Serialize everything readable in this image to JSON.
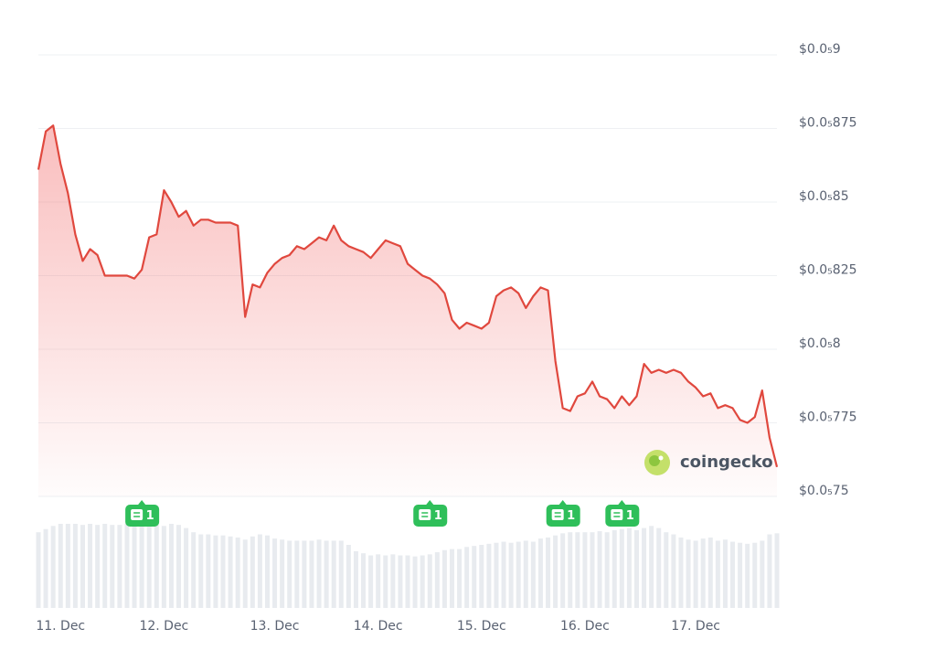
{
  "chart_data": {
    "type": "line",
    "color": "#e0483e",
    "categories": [
      null,
      null,
      null,
      "11. Dec",
      null,
      null,
      null,
      null,
      null,
      null,
      null,
      null,
      null,
      null,
      null,
      null,
      null,
      "12. Dec",
      null,
      null,
      null,
      null,
      null,
      null,
      null,
      null,
      null,
      null,
      null,
      null,
      null,
      null,
      "13. Dec",
      null,
      null,
      null,
      null,
      null,
      null,
      null,
      null,
      null,
      null,
      null,
      null,
      null,
      "14. Dec",
      null,
      null,
      null,
      null,
      null,
      null,
      null,
      null,
      null,
      null,
      null,
      null,
      null,
      "15. Dec",
      null,
      null,
      null,
      null,
      null,
      null,
      null,
      null,
      null,
      null,
      null,
      null,
      null,
      "16. Dec",
      null,
      null,
      null,
      null,
      null,
      null,
      null,
      null,
      null,
      null,
      null,
      null,
      null,
      null,
      "17. Dec",
      null,
      null,
      null,
      null,
      null,
      null,
      null,
      null,
      null,
      null,
      null
    ],
    "values": [
      8.61e-07,
      8.74e-07,
      8.76e-07,
      8.63e-07,
      8.53e-07,
      8.39e-07,
      8.3e-07,
      8.34e-07,
      8.32e-07,
      8.25e-07,
      8.25e-07,
      8.25e-07,
      8.25e-07,
      8.24e-07,
      8.27e-07,
      8.38e-07,
      8.39e-07,
      8.54e-07,
      8.5e-07,
      8.45e-07,
      8.47e-07,
      8.42e-07,
      8.44e-07,
      8.44e-07,
      8.43e-07,
      8.43e-07,
      8.43e-07,
      8.42e-07,
      8.11e-07,
      8.22e-07,
      8.21e-07,
      8.26e-07,
      8.29e-07,
      8.31e-07,
      8.32e-07,
      8.35e-07,
      8.34e-07,
      8.36e-07,
      8.38e-07,
      8.37e-07,
      8.42e-07,
      8.37e-07,
      8.35e-07,
      8.34e-07,
      8.33e-07,
      8.31e-07,
      8.34e-07,
      8.37e-07,
      8.36e-07,
      8.35e-07,
      8.29e-07,
      8.27e-07,
      8.25e-07,
      8.24e-07,
      8.22e-07,
      8.19e-07,
      8.1e-07,
      8.07e-07,
      8.09e-07,
      8.08e-07,
      8.07e-07,
      8.09e-07,
      8.18e-07,
      8.2e-07,
      8.21e-07,
      8.19e-07,
      8.14e-07,
      8.18e-07,
      8.21e-07,
      8.2e-07,
      7.96e-07,
      7.8e-07,
      7.79e-07,
      7.84e-07,
      7.85e-07,
      7.89e-07,
      7.84e-07,
      7.83e-07,
      7.8e-07,
      7.84e-07,
      7.81e-07,
      7.84e-07,
      7.95e-07,
      7.92e-07,
      7.93e-07,
      7.92e-07,
      7.93e-07,
      7.92e-07,
      7.89e-07,
      7.87e-07,
      7.84e-07,
      7.85e-07,
      7.8e-07,
      7.81e-07,
      7.8e-07,
      7.76e-07,
      7.75e-07,
      7.77e-07,
      7.86e-07,
      7.7e-07,
      7.6e-07
    ],
    "volume": [
      72,
      75,
      78,
      80,
      80,
      80,
      79,
      80,
      79,
      80,
      79,
      79,
      80,
      80,
      81,
      80,
      79,
      78,
      80,
      79,
      76,
      72,
      70,
      70,
      69,
      69,
      68,
      67,
      65,
      68,
      70,
      69,
      66,
      65,
      64,
      64,
      64,
      64,
      65,
      64,
      64,
      64,
      60,
      54,
      52,
      50,
      51,
      50,
      51,
      50,
      50,
      49,
      50,
      51,
      53,
      55,
      56,
      56,
      58,
      59,
      60,
      61,
      62,
      63,
      62,
      63,
      64,
      63,
      66,
      67,
      69,
      71,
      72,
      72,
      72,
      72,
      73,
      72,
      74,
      75,
      76,
      74,
      76,
      78,
      76,
      72,
      70,
      67,
      65,
      64,
      66,
      67,
      64,
      65,
      63,
      62,
      61,
      62,
      64,
      70,
      71
    ],
    "volume_color": "#e8ebef",
    "volume_lim": [
      0,
      100
    ],
    "ylim": [
      7.5e-07,
      9e-07
    ],
    "yticks": [
      {
        "value": 9e-07,
        "label": "$0.0₅9"
      },
      {
        "value": 8.75e-07,
        "label": "$0.0₅875"
      },
      {
        "value": 8.5e-07,
        "label": "$0.0₅85"
      },
      {
        "value": 8.25e-07,
        "label": "$0.0₅825"
      },
      {
        "value": 8e-07,
        "label": "$0.0₅8"
      },
      {
        "value": 7.75e-07,
        "label": "$0.0₅775"
      },
      {
        "value": 7.5e-07,
        "label": "$0.0₅75"
      }
    ],
    "grid": true,
    "news": [
      {
        "index": 14,
        "count": 1
      },
      {
        "index": 53,
        "count": 1
      },
      {
        "index": 71,
        "count": 1
      },
      {
        "index": 79,
        "count": 1
      }
    ],
    "watermark": "coingecko"
  }
}
